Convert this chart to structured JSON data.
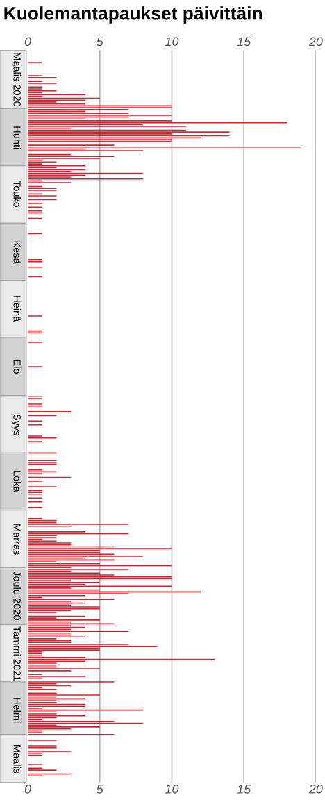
{
  "chart_data": {
    "type": "bar",
    "orientation": "horizontal",
    "title": "Kuolemantapaukset päivittäin",
    "categories": [
      null,
      null,
      null,
      null,
      null,
      null,
      null,
      null,
      null,
      null,
      null,
      null,
      null,
      null,
      null,
      "Maalis 2020",
      null,
      null,
      null,
      null,
      null,
      null,
      null,
      null,
      null,
      null,
      null,
      null,
      null,
      null,
      null,
      null,
      null,
      null,
      null,
      null,
      null,
      null,
      null,
      null,
      null,
      null,
      null,
      null,
      null,
      null,
      "Huhti",
      null,
      null,
      null,
      null,
      null,
      null,
      null,
      null,
      null,
      null,
      null,
      null,
      null,
      null,
      null,
      null,
      null,
      null,
      null,
      null,
      null,
      null,
      null,
      null,
      null,
      null,
      null,
      null,
      null,
      "Touko",
      null,
      null,
      null,
      null,
      null,
      null,
      null,
      null,
      null,
      null,
      null,
      null,
      null,
      null,
      null,
      null,
      null,
      null,
      null,
      null,
      null,
      null,
      null,
      null,
      null,
      null,
      null,
      null,
      null,
      null,
      "Kesä",
      null,
      null,
      null,
      null,
      null,
      null,
      null,
      null,
      null,
      null,
      null,
      null,
      null,
      null,
      null,
      null,
      null,
      null,
      null,
      null,
      null,
      null,
      null,
      null,
      null,
      null,
      null,
      null,
      null,
      "Heinä",
      null,
      null,
      null,
      null,
      null,
      null,
      null,
      null,
      null,
      null,
      null,
      null,
      null,
      null,
      null,
      null,
      null,
      null,
      null,
      null,
      null,
      null,
      null,
      null,
      null,
      null,
      null,
      null,
      null,
      null,
      "Elo",
      null,
      null,
      null,
      null,
      null,
      null,
      null,
      null,
      null,
      null,
      null,
      null,
      null,
      null,
      null,
      null,
      null,
      null,
      null,
      null,
      null,
      null,
      null,
      null,
      null,
      null,
      null,
      null,
      null,
      null,
      "Syys",
      null,
      null,
      null,
      null,
      null,
      null,
      null,
      null,
      null,
      null,
      null,
      null,
      null,
      null,
      null,
      null,
      null,
      null,
      null,
      null,
      null,
      null,
      null,
      null,
      null,
      null,
      null,
      null,
      null,
      "Loka",
      null,
      null,
      null,
      null,
      null,
      null,
      null,
      null,
      null,
      null,
      null,
      null,
      null,
      null,
      null,
      null,
      null,
      null,
      null,
      null,
      null,
      null,
      null,
      null,
      null,
      null,
      null,
      null,
      null,
      null,
      "Marras",
      null,
      null,
      null,
      null,
      null,
      null,
      null,
      null,
      null,
      null,
      null,
      null,
      null,
      null,
      null,
      null,
      null,
      null,
      null,
      null,
      null,
      null,
      null,
      null,
      null,
      null,
      null,
      null,
      null,
      "Joulu 2020",
      null,
      null,
      null,
      null,
      null,
      null,
      null,
      null,
      null,
      null,
      null,
      null,
      null,
      null,
      null,
      null,
      null,
      null,
      null,
      null,
      null,
      null,
      null,
      null,
      null,
      null,
      null,
      null,
      null,
      null,
      "Tammi 2021",
      null,
      null,
      null,
      null,
      null,
      null,
      null,
      null,
      null,
      null,
      null,
      null,
      null,
      null,
      null,
      null,
      null,
      null,
      null,
      null,
      null,
      null,
      null,
      null,
      null,
      null,
      null,
      null,
      null,
      "Helmi",
      null,
      null,
      null,
      null,
      null,
      null,
      null,
      null,
      null,
      null,
      null,
      null,
      null,
      null,
      null,
      null,
      null,
      null,
      null,
      null,
      null,
      null,
      null,
      null,
      null,
      "Maalis",
      null,
      null,
      null,
      null,
      null,
      null,
      null,
      null,
      null,
      null,
      null,
      null
    ],
    "values": [
      0,
      0,
      0,
      0,
      0,
      0,
      1,
      0,
      0,
      0,
      0,
      0,
      0,
      1,
      2,
      0,
      1,
      2,
      0,
      1,
      1,
      2,
      1,
      4,
      1,
      5,
      4,
      2,
      4,
      10,
      10,
      7,
      4,
      7,
      10,
      7,
      4,
      10,
      18,
      8,
      11,
      3,
      11,
      14,
      10,
      14,
      12,
      10,
      10,
      0,
      6,
      19,
      4,
      8,
      0,
      3,
      6,
      5,
      1,
      2,
      1,
      4,
      2,
      4,
      3,
      8,
      4,
      3,
      8,
      1,
      3,
      0,
      1,
      2,
      2,
      0,
      1,
      2,
      0,
      2,
      0,
      1,
      0,
      1,
      0,
      1,
      1,
      0,
      0,
      1,
      0,
      0,
      0,
      0,
      0,
      0,
      0,
      1,
      0,
      0,
      0,
      0,
      0,
      0,
      0,
      0,
      0,
      0,
      0,
      0,
      0,
      1,
      1,
      0,
      0,
      1,
      0,
      0,
      0,
      0,
      1,
      0,
      0,
      0,
      0,
      0,
      0,
      0,
      0,
      0,
      0,
      0,
      0,
      0,
      0,
      0,
      0,
      0,
      0,
      0,
      0,
      1,
      0,
      0,
      0,
      0,
      0,
      0,
      0,
      1,
      1,
      0,
      0,
      0,
      0,
      1,
      0,
      0,
      0,
      0,
      0,
      0,
      0,
      0,
      0,
      0,
      0,
      0,
      1,
      0,
      0,
      0,
      0,
      0,
      0,
      0,
      0,
      0,
      0,
      0,
      0,
      0,
      0,
      0,
      1,
      1,
      0,
      0,
      1,
      1,
      0,
      0,
      3,
      0,
      2,
      0,
      0,
      1,
      0,
      1,
      0,
      0,
      0,
      0,
      0,
      1,
      2,
      0,
      1,
      0,
      0,
      0,
      0,
      0,
      2,
      0,
      0,
      0,
      2,
      2,
      2,
      0,
      0,
      1,
      2,
      1,
      0,
      3,
      0,
      1,
      0,
      0,
      2,
      0,
      1,
      1,
      1,
      0,
      1,
      0,
      1,
      0,
      0,
      1,
      0,
      0,
      0,
      0,
      0,
      1,
      2,
      2,
      7,
      3,
      0,
      0,
      4,
      7,
      2,
      2,
      1,
      2,
      3,
      3,
      6,
      10,
      5,
      5,
      6,
      8,
      4,
      6,
      2,
      5,
      10,
      3,
      7,
      3,
      5,
      6,
      10,
      10,
      3,
      5,
      4,
      10,
      3,
      5,
      12,
      7,
      4,
      1,
      6,
      3,
      4,
      3,
      5,
      5,
      3,
      2,
      0,
      4,
      2,
      5,
      3,
      6,
      3,
      4,
      3,
      7,
      3,
      3,
      4,
      2,
      3,
      3,
      7,
      9,
      5,
      5,
      1,
      1,
      1,
      4,
      13,
      4,
      2,
      2,
      2,
      5,
      3,
      0,
      1,
      4,
      1,
      0,
      6,
      2,
      3,
      1,
      2,
      0,
      2,
      5,
      2,
      4,
      2,
      2,
      4,
      4,
      1,
      8,
      2,
      2,
      4,
      2,
      1,
      6,
      8,
      2,
      5,
      3,
      1,
      1,
      6,
      0,
      0,
      2,
      0,
      0,
      2,
      2,
      0,
      3,
      1,
      1,
      0,
      0,
      0,
      0,
      1,
      0,
      1,
      2,
      0,
      3,
      1,
      0,
      0,
      0
    ],
    "color": "#d8232a",
    "xlim": [
      0,
      20
    ],
    "xticks": [
      0,
      5,
      10,
      15,
      20
    ],
    "x2lim": [
      0,
      20
    ],
    "x2ticks": [
      0,
      5,
      10,
      15,
      20
    ],
    "grid": "x"
  }
}
